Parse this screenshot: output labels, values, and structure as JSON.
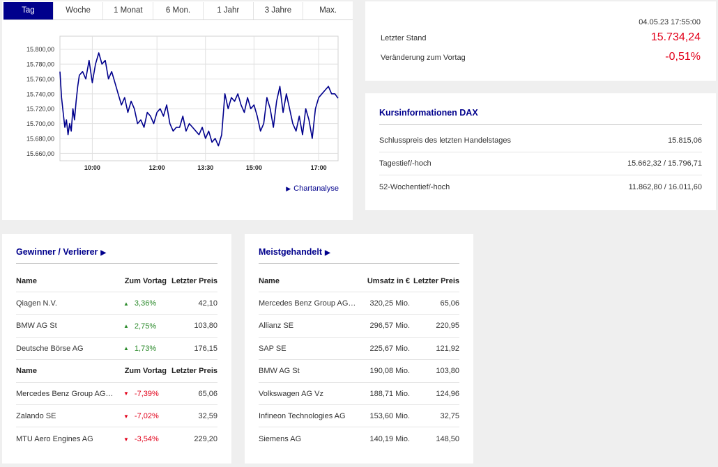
{
  "chart": {
    "tabs": [
      "Tag",
      "Woche",
      "1 Monat",
      "6 Mon.",
      "1 Jahr",
      "3 Jahre",
      "Max."
    ],
    "active_tab": 0,
    "chartanalyse_label": "Chartanalyse",
    "colors": {
      "line": "#00008c",
      "active_tab": "#00008c"
    }
  },
  "chart_data": {
    "type": "line",
    "title": "",
    "xlabel": "",
    "ylabel": "",
    "ylim": [
      15650,
      15810
    ],
    "xlim": [
      9.0,
      17.6
    ],
    "yticks": [
      15660,
      15680,
      15700,
      15720,
      15740,
      15760,
      15780,
      15800
    ],
    "ytick_labels": [
      "15.660,00",
      "15.680,00",
      "15.700,00",
      "15.720,00",
      "15.740,00",
      "15.760,00",
      "15.780,00",
      "15.800,00"
    ],
    "xticks": [
      10.0,
      12.0,
      13.5,
      15.0,
      17.0
    ],
    "xtick_labels": [
      "10:00",
      "12:00",
      "13:30",
      "15:00",
      "17:00"
    ],
    "grid": true,
    "series": [
      {
        "color": "#00008c",
        "x": [
          9.0,
          9.05,
          9.1,
          9.15,
          9.2,
          9.25,
          9.3,
          9.35,
          9.4,
          9.45,
          9.5,
          9.55,
          9.6,
          9.7,
          9.8,
          9.9,
          10.0,
          10.1,
          10.2,
          10.3,
          10.4,
          10.5,
          10.6,
          10.7,
          10.8,
          10.9,
          11.0,
          11.1,
          11.2,
          11.3,
          11.4,
          11.5,
          11.6,
          11.7,
          11.8,
          11.9,
          12.0,
          12.1,
          12.2,
          12.3,
          12.4,
          12.5,
          12.6,
          12.7,
          12.8,
          12.9,
          13.0,
          13.1,
          13.2,
          13.3,
          13.4,
          13.5,
          13.6,
          13.7,
          13.8,
          13.9,
          14.0,
          14.1,
          14.2,
          14.3,
          14.4,
          14.5,
          14.6,
          14.7,
          14.8,
          14.9,
          15.0,
          15.1,
          15.2,
          15.3,
          15.4,
          15.5,
          15.6,
          15.7,
          15.8,
          15.9,
          16.0,
          16.1,
          16.2,
          16.3,
          16.4,
          16.5,
          16.6,
          16.7,
          16.8,
          16.9,
          17.0,
          17.1,
          17.2,
          17.3,
          17.4,
          17.5,
          17.6
        ],
        "y": [
          15770,
          15735,
          15715,
          15695,
          15705,
          15685,
          15700,
          15690,
          15720,
          15705,
          15730,
          15750,
          15765,
          15770,
          15760,
          15785,
          15755,
          15780,
          15795,
          15780,
          15785,
          15760,
          15770,
          15755,
          15740,
          15725,
          15735,
          15715,
          15730,
          15720,
          15700,
          15705,
          15695,
          15715,
          15710,
          15700,
          15715,
          15720,
          15710,
          15725,
          15700,
          15690,
          15695,
          15695,
          15710,
          15690,
          15700,
          15695,
          15690,
          15685,
          15695,
          15680,
          15690,
          15675,
          15680,
          15670,
          15685,
          15740,
          15720,
          15735,
          15730,
          15740,
          15725,
          15715,
          15735,
          15720,
          15725,
          15710,
          15690,
          15700,
          15735,
          15720,
          15695,
          15730,
          15750,
          15715,
          15740,
          15720,
          15700,
          15690,
          15710,
          15685,
          15720,
          15705,
          15680,
          15720,
          15735,
          15740,
          15745,
          15750,
          15740,
          15740,
          15734
        ]
      }
    ]
  },
  "quote": {
    "datetime": "04.05.23 17:55:00",
    "last_label": "Letzter Stand",
    "last_value": "15.734,24",
    "change_label": "Veränderung zum Vortag",
    "change_value": "-0,51%",
    "colors": {
      "negative": "#e2001a"
    }
  },
  "info": {
    "title": "Kursinformationen DAX",
    "rows": [
      {
        "label": "Schlusspreis des letzten Handelstages",
        "value": "15.815,06"
      },
      {
        "label": "Tagestief/-hoch",
        "value": "15.662,32 / 15.796,71"
      },
      {
        "label": "52-Wochentief/-hoch",
        "value": "11.862,80 / 16.011,60"
      }
    ]
  },
  "gainers_losers": {
    "title": "Gewinner / Verlierer",
    "head": {
      "name": "Name",
      "change": "Zum Vortag",
      "price": "Letzter Preis"
    },
    "gainers": [
      {
        "name": "Qiagen N.V.",
        "change": "3,36%",
        "price": "42,10",
        "dir": "up"
      },
      {
        "name": "BMW AG St",
        "change": "2,75%",
        "price": "103,80",
        "dir": "up"
      },
      {
        "name": "Deutsche Börse AG",
        "change": "1,73%",
        "price": "176,15",
        "dir": "up"
      }
    ],
    "losers": [
      {
        "name": "Mercedes Benz Group AG ...",
        "change": "-7,39%",
        "price": "65,06",
        "dir": "down"
      },
      {
        "name": "Zalando SE",
        "change": "-7,02%",
        "price": "32,59",
        "dir": "down"
      },
      {
        "name": "MTU Aero Engines AG",
        "change": "-3,54%",
        "price": "229,20",
        "dir": "down"
      }
    ],
    "colors": {
      "up": "#2a8a2a",
      "down": "#e2001a"
    }
  },
  "most_traded": {
    "title": "Meistgehandelt",
    "head": {
      "name": "Name",
      "volume": "Umsatz in €",
      "price": "Letzter Preis"
    },
    "rows": [
      {
        "name": "Mercedes Benz Group AG ...",
        "volume": "320,25 Mio.",
        "price": "65,06"
      },
      {
        "name": "Allianz SE",
        "volume": "296,57 Mio.",
        "price": "220,95"
      },
      {
        "name": "SAP SE",
        "volume": "225,67 Mio.",
        "price": "121,92"
      },
      {
        "name": "BMW AG St",
        "volume": "190,08 Mio.",
        "price": "103,80"
      },
      {
        "name": "Volkswagen AG Vz",
        "volume": "188,71 Mio.",
        "price": "124,96"
      },
      {
        "name": "Infineon Technologies AG",
        "volume": "153,60 Mio.",
        "price": "32,75"
      },
      {
        "name": "Siemens AG",
        "volume": "140,19 Mio.",
        "price": "148,50"
      }
    ]
  }
}
